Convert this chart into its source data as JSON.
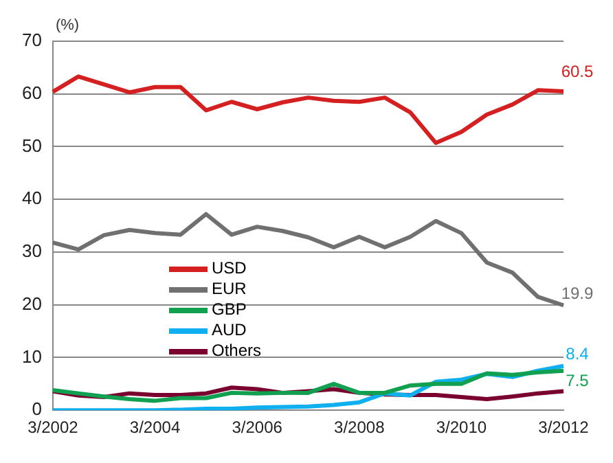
{
  "chart_data": {
    "type": "line",
    "ylabel": "(%)",
    "categories": [
      "3/2002",
      null,
      null,
      null,
      "3/2004",
      null,
      null,
      null,
      "3/2006",
      null,
      null,
      null,
      "3/2008",
      null,
      null,
      null,
      "3/2010",
      null,
      null,
      null,
      "3/2012"
    ],
    "series": [
      {
        "name": "USD",
        "color": "#d42020",
        "values": [
          60.4,
          63.3,
          61.8,
          60.3,
          61.3,
          61.3,
          56.9,
          58.5,
          57.1,
          58.4,
          59.3,
          58.7,
          58.5,
          59.3,
          56.5,
          50.7,
          52.8,
          56.1,
          58.0,
          60.7,
          60.5
        ]
      },
      {
        "name": "EUR",
        "color": "#707070",
        "values": [
          31.8,
          30.5,
          33.2,
          34.2,
          33.6,
          33.3,
          37.2,
          33.3,
          34.8,
          34.0,
          32.8,
          30.9,
          32.9,
          30.9,
          32.9,
          35.9,
          33.6,
          28.0,
          26.1,
          21.5,
          19.9
        ]
      },
      {
        "name": "GBP",
        "color": "#10a050",
        "values": [
          3.8,
          3.2,
          2.6,
          2.1,
          1.8,
          2.3,
          2.3,
          3.3,
          3.2,
          3.3,
          3.3,
          5.0,
          3.3,
          3.3,
          4.7,
          5.0,
          5.0,
          7.0,
          6.7,
          7.2,
          7.5
        ]
      },
      {
        "name": "AUD",
        "color": "#10b0f0",
        "values": [
          0,
          0,
          0,
          0,
          0,
          0.1,
          0.3,
          0.3,
          0.5,
          0.6,
          0.7,
          1.0,
          1.5,
          3.2,
          2.8,
          5.4,
          5.8,
          6.9,
          6.3,
          7.5,
          8.4
        ]
      },
      {
        "name": "Others",
        "color": "#7a0030",
        "values": [
          3.6,
          2.8,
          2.5,
          3.2,
          2.9,
          2.9,
          3.2,
          4.3,
          4.0,
          3.3,
          3.6,
          4.0,
          3.3,
          3.0,
          2.9,
          2.9,
          2.5,
          2.1,
          2.6,
          3.2,
          3.6
        ]
      }
    ],
    "annotations": [
      {
        "text": "60.5",
        "x": "3/2012",
        "y": 60.5
      },
      {
        "text": "19.9",
        "x": "3/2012",
        "y": 19.9
      },
      {
        "text": "8.4",
        "x": "3/2012",
        "y": 8.4
      },
      {
        "text": "7.5",
        "x": "3/2012",
        "y": 7.5
      }
    ],
    "ylim": [
      0,
      70
    ],
    "yticks": [
      0,
      10,
      20,
      30,
      40,
      50,
      60,
      70
    ],
    "grid": "y",
    "legend": "center left",
    "marker": "none",
    "line_style": "solid"
  }
}
